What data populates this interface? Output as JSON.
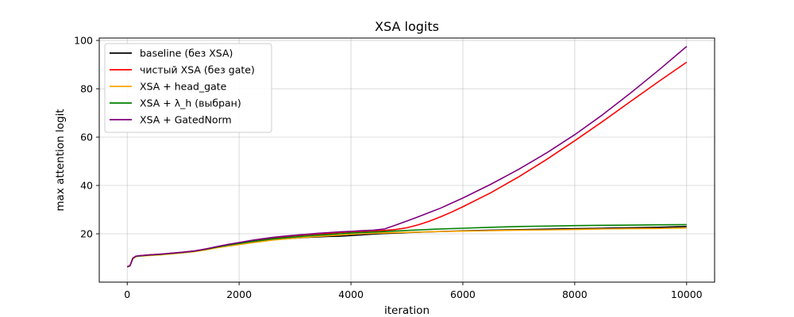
{
  "chart_data": {
    "type": "line",
    "title": "XSA logits",
    "xlabel": "iteration",
    "ylabel": "max attention logit",
    "xlim": [
      -500,
      10500
    ],
    "ylim": [
      0,
      101
    ],
    "xticks": [
      0,
      2000,
      4000,
      6000,
      8000,
      10000
    ],
    "yticks": [
      20,
      40,
      60,
      80,
      100
    ],
    "grid": true,
    "legend_position": "top-left",
    "series": [
      {
        "name": "baseline (без XSA)",
        "color": "#000000",
        "x": [
          0,
          50,
          100,
          150,
          200,
          400,
          600,
          800,
          1000,
          1200,
          1400,
          1600,
          1800,
          2000,
          2200,
          2400,
          2600,
          2800,
          3000,
          3200,
          3400,
          3600,
          3800,
          4000,
          4500,
          5000,
          5500,
          6000,
          6500,
          7000,
          7500,
          8000,
          8500,
          9000,
          9500,
          10000
        ],
        "values": [
          6.3,
          6.8,
          9.8,
          10.6,
          10.8,
          11.2,
          11.5,
          11.9,
          12.3,
          12.8,
          13.6,
          14.5,
          15.2,
          15.8,
          16.5,
          17.1,
          17.6,
          17.9,
          18.2,
          18.5,
          18.7,
          18.9,
          19.0,
          19.3,
          20.0,
          20.5,
          20.9,
          21.2,
          21.5,
          21.7,
          21.9,
          22.1,
          22.3,
          22.5,
          22.7,
          23.0
        ]
      },
      {
        "name": "чистый XSA (без gate)",
        "color": "#ff0000",
        "x": [
          0,
          50,
          100,
          150,
          200,
          400,
          600,
          800,
          1000,
          1200,
          1400,
          1600,
          1800,
          2000,
          2200,
          2400,
          2600,
          2800,
          3000,
          3200,
          3400,
          3600,
          3800,
          4000,
          4200,
          4400,
          4600,
          4800,
          5000,
          5200,
          5400,
          5600,
          5800,
          6000,
          6500,
          7000,
          7500,
          8000,
          8500,
          9000,
          9500,
          10000
        ],
        "values": [
          6.3,
          6.8,
          9.9,
          10.7,
          10.9,
          11.3,
          11.6,
          12.0,
          12.4,
          12.9,
          13.7,
          14.6,
          15.4,
          16.2,
          16.9,
          17.6,
          18.2,
          18.7,
          19.2,
          19.6,
          19.9,
          20.2,
          20.5,
          20.8,
          21.0,
          21.2,
          21.4,
          21.8,
          22.5,
          23.7,
          25.2,
          27.0,
          29.0,
          31.2,
          37.0,
          43.6,
          50.8,
          58.5,
          66.5,
          74.8,
          83.0,
          91.0
        ]
      },
      {
        "name": "XSA + head_gate",
        "color": "#ffa500",
        "x": [
          0,
          50,
          100,
          150,
          200,
          400,
          600,
          800,
          1000,
          1200,
          1400,
          1600,
          1800,
          2000,
          2200,
          2400,
          2600,
          2800,
          3000,
          3200,
          3400,
          3600,
          3800,
          4000,
          4500,
          5000,
          5500,
          6000,
          6500,
          7000,
          7500,
          8000,
          8500,
          9000,
          9500,
          10000
        ],
        "values": [
          6.3,
          6.8,
          9.6,
          10.5,
          10.7,
          11.0,
          11.3,
          11.7,
          12.1,
          12.6,
          13.3,
          14.2,
          14.9,
          15.5,
          16.2,
          16.8,
          17.4,
          17.8,
          18.2,
          18.6,
          18.9,
          19.2,
          19.5,
          19.8,
          20.3,
          20.6,
          20.9,
          21.1,
          21.3,
          21.5,
          21.6,
          21.8,
          22.0,
          22.1,
          22.2,
          22.4
        ]
      },
      {
        "name": "XSA + λ_h (выбран)",
        "color": "#008000",
        "x": [
          0,
          50,
          100,
          150,
          200,
          400,
          600,
          800,
          1000,
          1200,
          1400,
          1600,
          1800,
          2000,
          2200,
          2400,
          2600,
          2800,
          3000,
          3200,
          3400,
          3600,
          3800,
          4000,
          4500,
          5000,
          5500,
          6000,
          6500,
          7000,
          7500,
          8000,
          8500,
          9000,
          9500,
          10000
        ],
        "values": [
          6.3,
          6.8,
          9.8,
          10.6,
          10.8,
          11.2,
          11.5,
          11.9,
          12.3,
          12.8,
          13.6,
          14.5,
          15.3,
          16.0,
          16.7,
          17.3,
          17.9,
          18.3,
          18.7,
          19.1,
          19.4,
          19.7,
          20.0,
          20.3,
          20.8,
          21.4,
          21.9,
          22.3,
          22.7,
          23.0,
          23.2,
          23.4,
          23.5,
          23.6,
          23.7,
          23.8
        ]
      },
      {
        "name": "XSA + GatedNorm",
        "color": "#800080",
        "x": [
          0,
          50,
          100,
          150,
          200,
          400,
          600,
          800,
          1000,
          1200,
          1400,
          1600,
          1800,
          2000,
          2200,
          2400,
          2600,
          2800,
          3000,
          3200,
          3400,
          3600,
          3800,
          4000,
          4200,
          4400,
          4600,
          4800,
          5000,
          5200,
          5400,
          5600,
          5800,
          6000,
          6500,
          7000,
          7500,
          8000,
          8500,
          9000,
          9500,
          10000
        ],
        "values": [
          6.3,
          6.8,
          9.9,
          10.7,
          10.9,
          11.3,
          11.6,
          12.0,
          12.4,
          12.9,
          13.7,
          14.7,
          15.6,
          16.4,
          17.2,
          17.9,
          18.5,
          19.0,
          19.4,
          19.8,
          20.2,
          20.5,
          20.8,
          21.0,
          21.3,
          21.5,
          22.0,
          23.6,
          25.3,
          27.0,
          28.8,
          30.6,
          32.7,
          34.8,
          40.5,
          46.7,
          53.5,
          61.0,
          69.3,
          78.3,
          87.7,
          97.5
        ]
      }
    ]
  }
}
